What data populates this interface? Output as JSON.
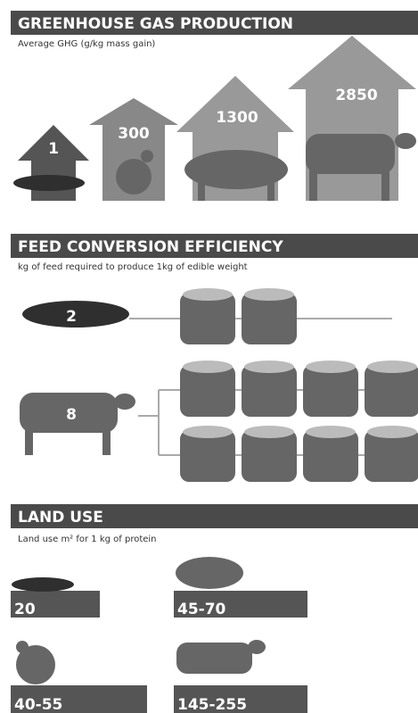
{
  "sections": [
    {
      "title": "GREENHOUSE GAS PRODUCTION",
      "subtitle": "Average GHG (g/kg mass gain)",
      "items": [
        "1",
        "300",
        "1300",
        "2850"
      ]
    },
    {
      "title": "FEED CONVERSION EFFICIENCY",
      "subtitle": "kg of feed required to produce 1kg of edible weight",
      "items": [
        "2",
        "8"
      ]
    },
    {
      "title": "LAND USE",
      "subtitle": "Land use m² for 1 kg of protein",
      "items": [
        "20",
        "45-70",
        "40-55",
        "145-255"
      ]
    }
  ]
}
